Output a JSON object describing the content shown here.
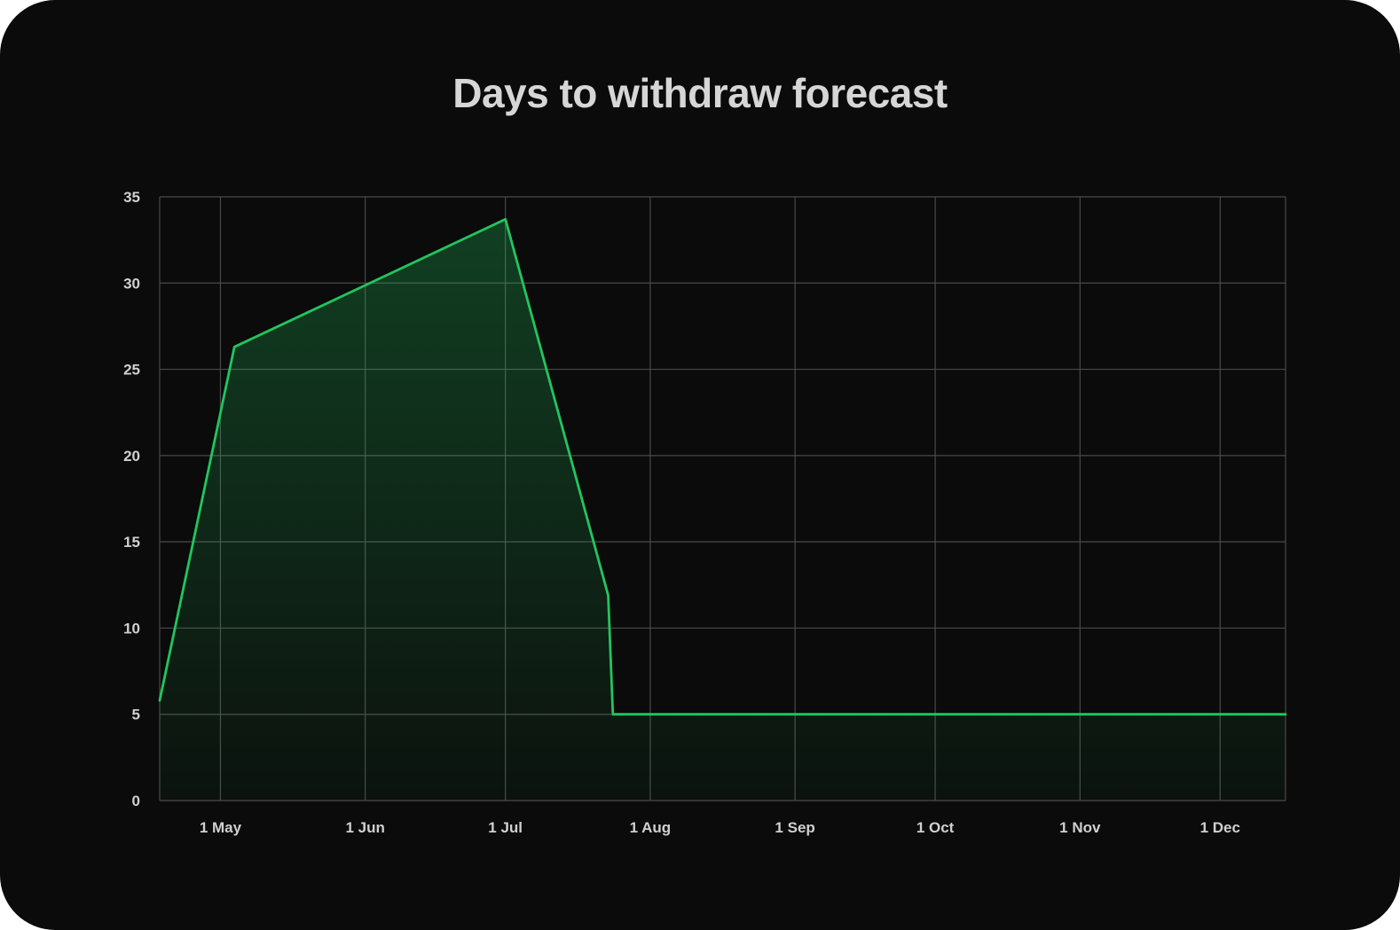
{
  "chart_data": {
    "type": "area",
    "title": "Days to withdraw forecast",
    "xlabel": "",
    "ylabel": "",
    "x_axis": {
      "kind": "date",
      "range": [
        "2024-04-18",
        "2024-12-15"
      ],
      "ticks": [
        {
          "date": "2024-05-01",
          "label": "1 May"
        },
        {
          "date": "2024-06-01",
          "label": "1 Jun"
        },
        {
          "date": "2024-07-01",
          "label": "1 Jul"
        },
        {
          "date": "2024-08-01",
          "label": "1 Aug"
        },
        {
          "date": "2024-09-01",
          "label": "1 Sep"
        },
        {
          "date": "2024-10-01",
          "label": "1 Oct"
        },
        {
          "date": "2024-11-01",
          "label": "1 Nov"
        },
        {
          "date": "2024-12-01",
          "label": "1 Dec"
        }
      ]
    },
    "y_axis": {
      "range": [
        0,
        35
      ],
      "ticks": [
        0,
        5,
        10,
        15,
        20,
        25,
        30,
        35
      ]
    },
    "grid": true,
    "legend": "none",
    "series": [
      {
        "color": "#22c55e",
        "points": [
          {
            "x": "2024-04-18",
            "y": 5.8
          },
          {
            "x": "2024-05-04",
            "y": 26.3
          },
          {
            "x": "2024-07-01",
            "y": 33.7
          },
          {
            "x": "2024-07-23",
            "y": 11.9
          },
          {
            "x": "2024-07-24",
            "y": 5.0
          },
          {
            "x": "2024-12-15",
            "y": 5.0
          }
        ]
      }
    ],
    "colors": {
      "background": "#0b0b0b",
      "grid": "#4a4a4a",
      "line": "#22c55e",
      "text": "#d0d0d0"
    }
  }
}
